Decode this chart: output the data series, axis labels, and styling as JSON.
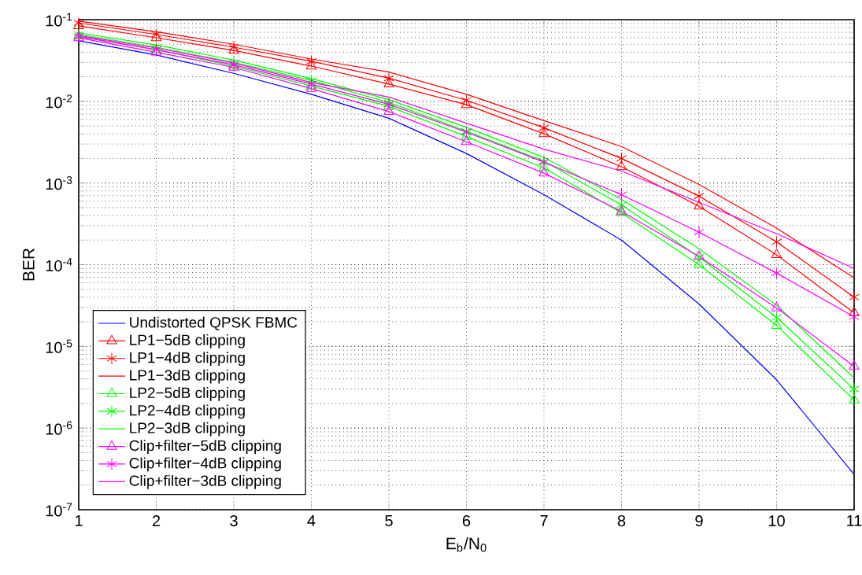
{
  "chart_data": {
    "type": "line",
    "xlabel": "E$_{b}$/N$_{0}$",
    "ylabel": "BER",
    "x": [
      1,
      2,
      3,
      4,
      5,
      6,
      7,
      8,
      9,
      10,
      11
    ],
    "xlim": [
      1,
      11
    ],
    "xticks": [
      1,
      2,
      3,
      4,
      5,
      6,
      7,
      8,
      9,
      10,
      11
    ],
    "ylim": [
      1e-07,
      0.1
    ],
    "log": "y",
    "yticks": [
      {
        "value": 1e-07,
        "label": "10$^{-7}$"
      },
      {
        "value": 1e-06,
        "label": "10$^{-6}$"
      },
      {
        "value": 1e-05,
        "label": "10$^{-5}$"
      },
      {
        "value": 0.0001,
        "label": "10$^{-4}$"
      },
      {
        "value": 0.001,
        "label": "10$^{-3}$"
      },
      {
        "value": 0.01,
        "label": "10$^{-2}$"
      },
      {
        "value": 0.1,
        "label": "10$^{-1}$"
      }
    ],
    "grid": true,
    "legend": "bottom left",
    "line_style": "solid",
    "series": [
      {
        "name": "Undistorted QPSK FBMC",
        "color": "#0000ff",
        "marker": "none",
        "values": [
          0.055,
          0.037,
          0.022,
          0.0122,
          0.0062,
          0.0023,
          0.00072,
          0.0002,
          3.3e-05,
          3.9e-06,
          2.7e-07
        ]
      },
      {
        "name": "LP1−5dB clipping",
        "color": "#ff0000",
        "marker": "triangle",
        "values": [
          0.084,
          0.06,
          0.042,
          0.027,
          0.0163,
          0.0091,
          0.004,
          0.00158,
          0.00052,
          0.000132,
          2.57e-05
        ]
      },
      {
        "name": "LP1−4dB clipping",
        "color": "#ff0000",
        "marker": "cross",
        "values": [
          0.091,
          0.066,
          0.046,
          0.031,
          0.0192,
          0.0103,
          0.00475,
          0.002,
          0.00069,
          0.00019,
          4e-05
        ]
      },
      {
        "name": "LP1−3dB clipping",
        "color": "#ff0000",
        "marker": "none",
        "values": [
          0.096,
          0.071,
          0.05,
          0.033,
          0.0228,
          0.0122,
          0.0058,
          0.0028,
          0.00096,
          0.00028,
          6.9e-05
        ]
      },
      {
        "name": "LP2−5dB clipping",
        "color": "#00ff00",
        "marker": "triangle",
        "values": [
          0.063,
          0.043,
          0.027,
          0.0154,
          0.0087,
          0.0037,
          0.00153,
          0.00043,
          0.0001,
          1.8e-05,
          2.2e-06
        ]
      },
      {
        "name": "LP2−4dB clipping",
        "color": "#00ff00",
        "marker": "cross",
        "values": [
          0.066,
          0.046,
          0.03,
          0.018,
          0.0097,
          0.0043,
          0.00185,
          0.00054,
          0.000124,
          2.26e-05,
          3e-06
        ]
      },
      {
        "name": "LP2−3dB clipping",
        "color": "#00ff00",
        "marker": "none",
        "values": [
          0.069,
          0.049,
          0.032,
          0.019,
          0.0105,
          0.0048,
          0.00206,
          0.00063,
          0.000157,
          3.2e-05,
          4.1e-06
        ]
      },
      {
        "name": "Clip+filter−5dB clipping",
        "color": "#ff00ff",
        "marker": "triangle",
        "values": [
          0.06,
          0.04,
          0.026,
          0.0143,
          0.0075,
          0.0032,
          0.00132,
          0.00045,
          0.000126,
          2.95e-05,
          5.7e-06
        ]
      },
      {
        "name": "Clip+filter−4dB clipping",
        "color": "#ff00ff",
        "marker": "cross",
        "values": [
          0.062,
          0.043,
          0.028,
          0.0163,
          0.0092,
          0.0042,
          0.0018,
          0.00072,
          0.00025,
          7.9e-05,
          2.3e-05
        ]
      },
      {
        "name": "Clip+filter−3dB clipping",
        "color": "#ff00ff",
        "marker": "none",
        "values": [
          0.064,
          0.045,
          0.0295,
          0.017,
          0.0113,
          0.0054,
          0.0026,
          0.0014,
          0.00058,
          0.00024,
          9e-05
        ]
      }
    ]
  }
}
